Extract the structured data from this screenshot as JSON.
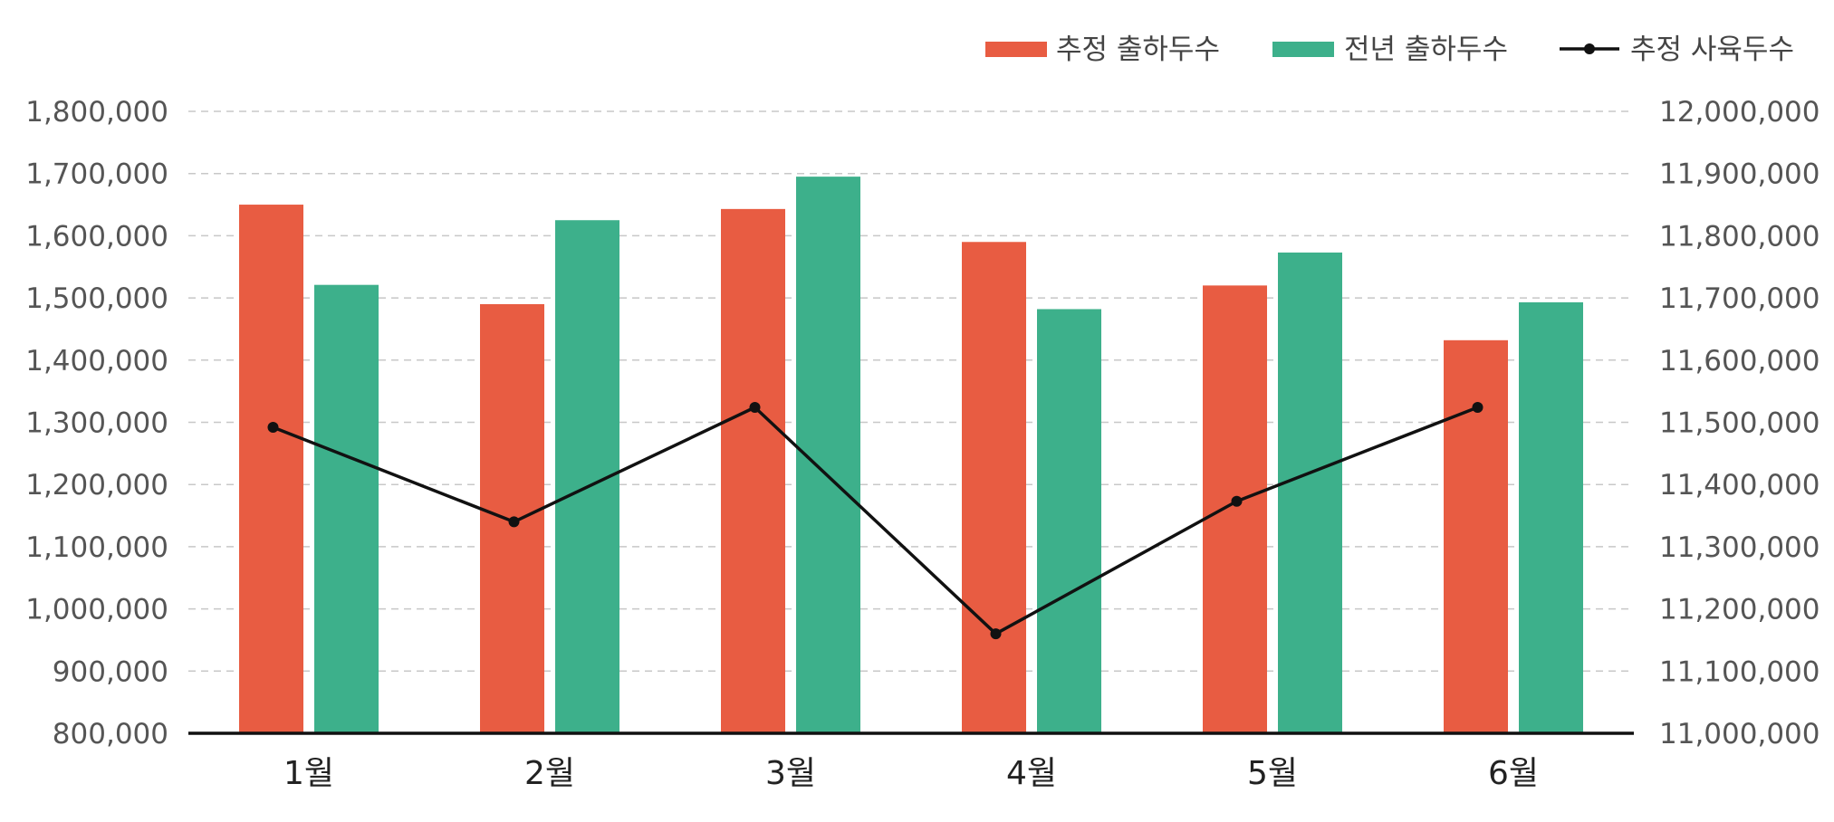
{
  "chart_data": {
    "type": "bar",
    "categories": [
      "1월",
      "2월",
      "3월",
      "4월",
      "5월",
      "6월"
    ],
    "series": [
      {
        "name": "추정 출하두수",
        "type": "bar",
        "axis": "left",
        "color": "#E85C42",
        "values": [
          1650000,
          1490000,
          1643000,
          1590000,
          1520000,
          1432000
        ]
      },
      {
        "name": "전년 출하두수",
        "type": "bar",
        "axis": "left",
        "color": "#3DB08B",
        "values": [
          1521000,
          1625000,
          1695000,
          1482000,
          1573000,
          1493000
        ]
      },
      {
        "name": "추정 사육두수",
        "type": "line",
        "axis": "right",
        "color": "#111111",
        "values": [
          11492000,
          11340000,
          11524000,
          11160000,
          11373000,
          11524000
        ]
      }
    ],
    "y_left": {
      "lim": [
        800000,
        1800000
      ],
      "ticks": [
        "800,000",
        "900,000",
        "1,000,000",
        "1,100,000",
        "1,200,000",
        "1,300,000",
        "1,400,000",
        "1,500,000",
        "1,600,000",
        "1,700,000",
        "1,800,000"
      ]
    },
    "y_right": {
      "lim": [
        11000000,
        12000000
      ],
      "ticks": [
        "11,000,000",
        "11,100,000",
        "11,200,000",
        "11,300,000",
        "11,400,000",
        "11,500,000",
        "11,600,000",
        "11,700,000",
        "11,800,000",
        "11,900,000",
        "12,000,000"
      ]
    },
    "grid": true,
    "legend": "top-right"
  }
}
